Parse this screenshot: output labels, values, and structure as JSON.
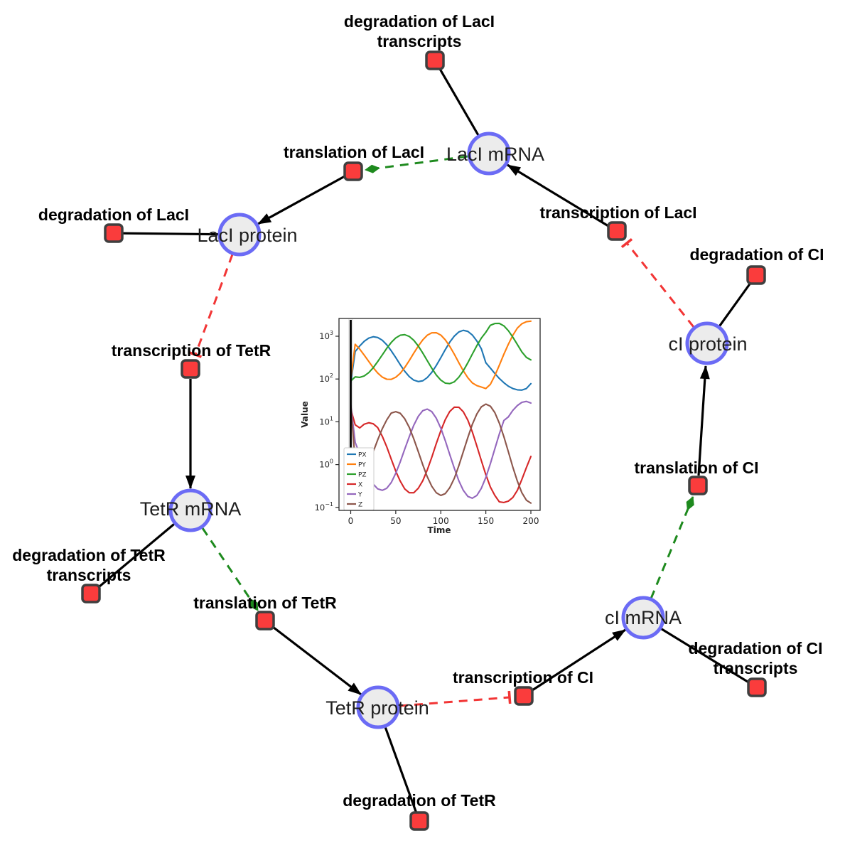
{
  "diagram": {
    "colors": {
      "species_fill": "#ececec",
      "species_border": "#6b6bf5",
      "reaction_fill": "#fa3c3c",
      "reaction_border": "#3f3f3f",
      "production_edge": "#000000",
      "modifier_edge": "#1e8a1e",
      "inhibition_edge": "#f23535"
    },
    "species": {
      "laci_mrna": {
        "label": "LacI mRNA"
      },
      "laci_protein": {
        "label": "LacI protein"
      },
      "ci_protein": {
        "label": "cI protein"
      },
      "tetr_mrna": {
        "label": "TetR mRNA"
      },
      "ci_mrna": {
        "label": "cI mRNA"
      },
      "tetr_protein": {
        "label": "TetR protein"
      }
    },
    "reactions": {
      "deg_laci_tx": {
        "line1": "degradation of LacI",
        "line2": "transcripts"
      },
      "translation_laci": {
        "label": "translation of LacI"
      },
      "deg_laci": {
        "label": "degradation of LacI"
      },
      "transcription_laci": {
        "label": "transcription of LacI"
      },
      "deg_ci": {
        "label": "degradation of CI"
      },
      "transcription_tetr": {
        "label": "transcription of TetR"
      },
      "translation_ci": {
        "label": "translation of CI"
      },
      "deg_tetr_tx": {
        "line1": "degradation of TetR",
        "line2": "transcripts"
      },
      "translation_tetr": {
        "label": "translation of TetR"
      },
      "transcription_ci": {
        "label": "transcription of CI"
      },
      "deg_ci_tx": {
        "line1": "degradation of CI",
        "line2": "transcripts"
      },
      "deg_tetr": {
        "label": "degradation of TetR"
      }
    }
  },
  "chart_data": {
    "type": "line",
    "title": "",
    "xlabel": "Time",
    "ylabel": "Value",
    "x_ticks": [
      0,
      50,
      100,
      150,
      200
    ],
    "y_scale": "log",
    "y_tick_exponents": [
      3,
      2,
      1,
      0,
      -1
    ],
    "xlim": [
      -10,
      212
    ],
    "ylim": [
      0.076,
      2630
    ],
    "grid": false,
    "legend_position": "lower left",
    "event_line_x": 0,
    "x": [
      0,
      5,
      10,
      15,
      20,
      25,
      30,
      35,
      40,
      45,
      50,
      55,
      60,
      65,
      70,
      75,
      80,
      85,
      90,
      95,
      100,
      105,
      110,
      115,
      120,
      125,
      130,
      135,
      140,
      145,
      150,
      155,
      160,
      165,
      170,
      175,
      180,
      185,
      190,
      195,
      200
    ],
    "series": [
      {
        "name": "PX",
        "color": "#1f77b4",
        "values": [
          80,
          438,
          593,
          762,
          904,
          972,
          935,
          807,
          631,
          457,
          316,
          216,
          152,
          114,
          94,
          87,
          91,
          108,
          143,
          207,
          316,
          487,
          727,
          1009,
          1256,
          1372,
          1298,
          1066,
          773,
          508,
          240,
          180,
          135,
          103,
          82,
          68,
          60,
          56,
          55,
          60,
          78
        ]
      },
      {
        "name": "PY",
        "color": "#ff7f0e",
        "values": [
          100,
          650,
          499,
          362,
          257,
          184,
          138,
          111,
          99,
          98,
          110,
          136,
          186,
          270,
          402,
          590,
          824,
          1054,
          1202,
          1208,
          1062,
          824,
          578,
          378,
          241,
          156,
          107,
          81,
          70,
          65,
          60,
          75,
          120,
          210,
          380,
          650,
          1050,
          1550,
          1950,
          2180,
          2250
        ]
      },
      {
        "name": "PZ",
        "color": "#2ca02c",
        "values": [
          90,
          112,
          109,
          118,
          141,
          184,
          256,
          366,
          521,
          715,
          912,
          1054,
          1086,
          989,
          803,
          590,
          404,
          268,
          178,
          124,
          94,
          80,
          78,
          86,
          110,
          156,
          240,
          382,
          604,
          906,
          1233,
          1800,
          1980,
          2000,
          1750,
          1350,
          950,
          640,
          430,
          320,
          280
        ]
      },
      {
        "name": "X",
        "color": "#d62728",
        "values": [
          20,
          8.5,
          7.2,
          8.8,
          9.5,
          9,
          7.3,
          4.6,
          2.6,
          1.34,
          0.7,
          0.41,
          0.27,
          0.22,
          0.22,
          0.28,
          0.42,
          0.75,
          1.49,
          3.1,
          6.2,
          11.3,
          17.5,
          22,
          21.9,
          17.2,
          10.9,
          5.8,
          2.7,
          1.24,
          0.58,
          0.3,
          0.19,
          0.135,
          0.13,
          0.14,
          0.17,
          0.25,
          0.45,
          0.85,
          1.55
        ]
      },
      {
        "name": "Y",
        "color": "#9467bd",
        "values": [
          25,
          3.3,
          1.76,
          0.95,
          0.55,
          0.35,
          0.27,
          0.25,
          0.28,
          0.38,
          0.63,
          1.16,
          2.3,
          4.5,
          8.3,
          13.5,
          18.2,
          19.8,
          17.3,
          12.1,
          7.1,
          3.6,
          1.71,
          0.82,
          0.42,
          0.25,
          0.18,
          0.164,
          0.19,
          0.28,
          0.5,
          1.05,
          2.35,
          5.2,
          10.7,
          13,
          18.5,
          24,
          28.5,
          30,
          27.5
        ]
      },
      {
        "name": "Z",
        "color": "#8c564b",
        "values": [
          25,
          1.2,
          0.9,
          0.9,
          1.06,
          2,
          3.8,
          6.9,
          11.1,
          16,
          17.3,
          15.8,
          11.8,
          7.4,
          4,
          2,
          0.99,
          0.52,
          0.31,
          0.22,
          0.19,
          0.21,
          0.29,
          0.48,
          0.94,
          2,
          4.3,
          8.7,
          15.3,
          22.4,
          25.9,
          23.2,
          16.4,
          9.3,
          4.5,
          2,
          0.87,
          0.41,
          0.22,
          0.147,
          0.126
        ]
      }
    ]
  }
}
